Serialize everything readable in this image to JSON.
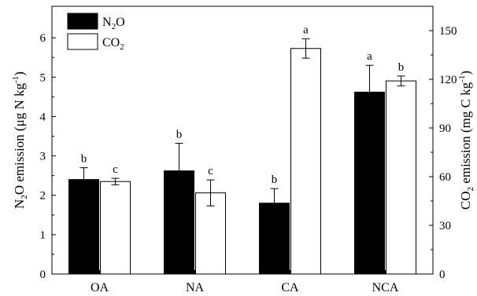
{
  "chart_data": {
    "type": "bar",
    "categories": [
      "OA",
      "NA",
      "CA",
      "NCA"
    ],
    "series": [
      {
        "name": "N2O",
        "axis": "left",
        "color": "#000000",
        "values": [
          2.4,
          2.62,
          1.8,
          4.62
        ],
        "errors": [
          0.3,
          0.7,
          0.37,
          0.68
        ],
        "letters": [
          "b",
          "b",
          "b",
          "a"
        ]
      },
      {
        "name": "CO2",
        "axis": "right",
        "color": "#ffffff",
        "values": [
          57,
          50,
          139,
          119
        ],
        "errors": [
          2,
          8,
          6,
          3
        ],
        "letters": [
          "c",
          "c",
          "a",
          "b"
        ]
      }
    ],
    "y_left": {
      "label_parts": [
        "N",
        "2",
        "O emission (μg  N kg",
        "-1",
        ")"
      ],
      "lim": [
        0,
        6.8
      ],
      "ticks": [
        "0",
        "1",
        "2",
        "3",
        "4",
        "5",
        "6"
      ]
    },
    "y_right": {
      "label_parts": [
        "CO",
        "2",
        " emission (mg C kg",
        "-1",
        ")"
      ],
      "lim": [
        0,
        165
      ],
      "ticks": [
        "0",
        "30",
        "60",
        "90",
        "120",
        "150"
      ]
    },
    "legend": {
      "placement": "top-left",
      "entries": [
        {
          "text": "N",
          "sub": "2",
          "tail": "O",
          "fill": "#000000"
        },
        {
          "text": "CO",
          "sub": "2",
          "tail": "",
          "fill": "#ffffff"
        }
      ]
    }
  }
}
